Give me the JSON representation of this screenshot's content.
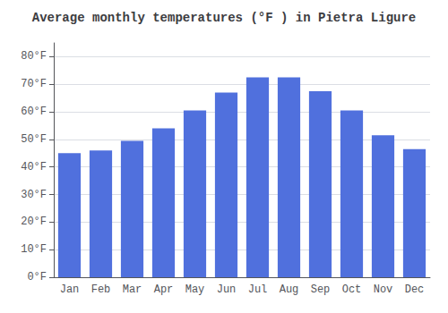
{
  "chart_data": {
    "type": "bar",
    "title": "Average monthly temperatures (°F ) in Pietra Ligure",
    "categories": [
      "Jan",
      "Feb",
      "Mar",
      "Apr",
      "May",
      "Jun",
      "Jul",
      "Aug",
      "Sep",
      "Oct",
      "Nov",
      "Dec"
    ],
    "values": [
      45,
      46,
      49.5,
      54,
      60.5,
      67,
      72.5,
      72.5,
      67.5,
      60.5,
      51.5,
      46.5
    ],
    "ylim": [
      0,
      85
    ],
    "yticks": [
      {
        "value": 0,
        "label": "0°F"
      },
      {
        "value": 10,
        "label": "10°F"
      },
      {
        "value": 20,
        "label": "20°F"
      },
      {
        "value": 30,
        "label": "30°F"
      },
      {
        "value": 40,
        "label": "40°F"
      },
      {
        "value": 50,
        "label": "50°F"
      },
      {
        "value": 60,
        "label": "60°F"
      },
      {
        "value": 70,
        "label": "70°F"
      },
      {
        "value": 80,
        "label": "80°F"
      }
    ],
    "grid": true
  }
}
